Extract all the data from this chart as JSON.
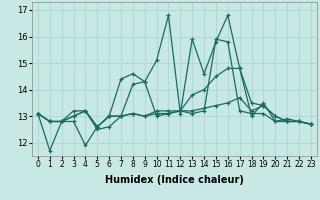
{
  "xlabel": "Humidex (Indice chaleur)",
  "xlim": [
    -0.5,
    23.5
  ],
  "ylim": [
    11.5,
    17.3
  ],
  "yticks": [
    12,
    13,
    14,
    15,
    16,
    17
  ],
  "xticks": [
    0,
    1,
    2,
    3,
    4,
    5,
    6,
    7,
    8,
    9,
    10,
    11,
    12,
    13,
    14,
    15,
    16,
    17,
    18,
    19,
    20,
    21,
    22,
    23
  ],
  "xtick_labels": [
    "0",
    "1",
    "2",
    "3",
    "4",
    "5",
    "6",
    "7",
    "8",
    "9",
    "10",
    "11",
    "12",
    "13",
    "14",
    "15",
    "16",
    "17",
    "18",
    "19",
    "20",
    "21",
    "22",
    "23"
  ],
  "line_color": "#1a6b5e",
  "bg_color": "#c8e8e5",
  "grid_color": "#b0d8d4",
  "lines": [
    [
      13.1,
      11.7,
      12.8,
      12.8,
      11.9,
      12.6,
      13.0,
      14.4,
      14.6,
      14.3,
      15.1,
      16.8,
      13.1,
      15.9,
      14.6,
      15.8,
      16.8,
      14.8,
      13.0,
      13.5,
      12.8,
      12.9,
      12.8,
      12.7
    ],
    [
      13.1,
      12.8,
      12.8,
      13.2,
      13.2,
      12.5,
      12.6,
      13.0,
      14.2,
      14.3,
      13.0,
      13.1,
      13.2,
      13.1,
      13.2,
      15.9,
      15.8,
      13.2,
      13.1,
      13.1,
      12.8,
      12.8,
      12.8,
      12.7
    ],
    [
      13.1,
      12.8,
      12.8,
      13.0,
      13.2,
      12.6,
      13.0,
      13.0,
      13.1,
      13.0,
      13.1,
      13.1,
      13.2,
      13.8,
      14.0,
      14.5,
      14.8,
      14.8,
      13.5,
      13.4,
      13.0,
      12.8,
      12.8,
      12.7
    ],
    [
      13.1,
      12.8,
      12.8,
      13.0,
      13.2,
      12.6,
      13.0,
      13.0,
      13.1,
      13.0,
      13.2,
      13.2,
      13.2,
      13.2,
      13.3,
      13.4,
      13.5,
      13.7,
      13.2,
      13.4,
      13.0,
      12.8,
      12.8,
      12.7
    ]
  ]
}
